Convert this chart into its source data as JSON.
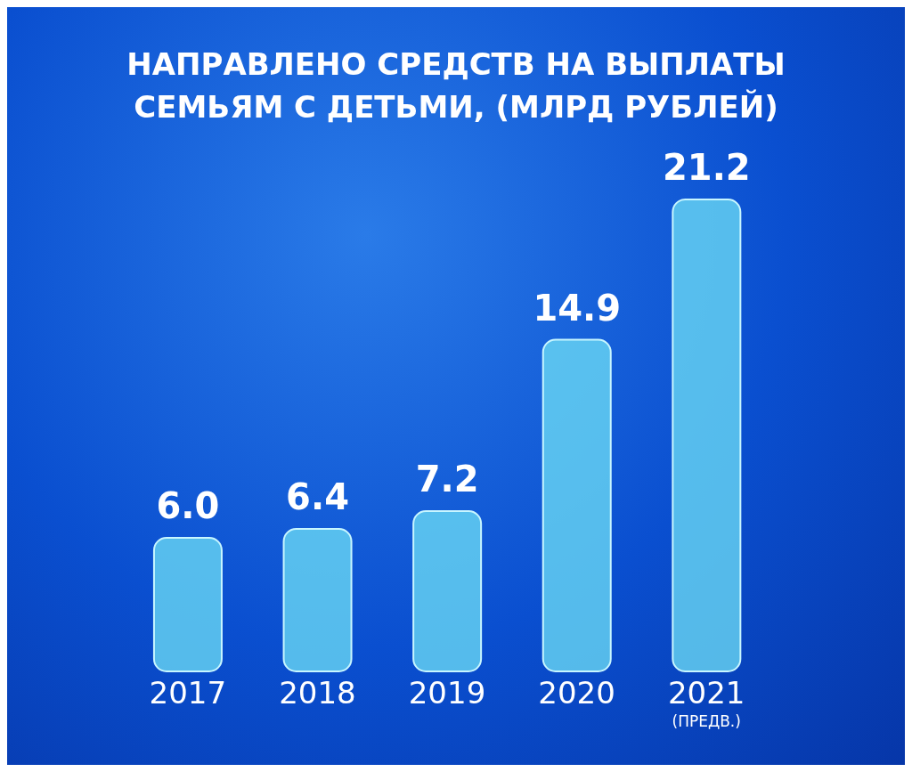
{
  "chart_data": {
    "type": "bar",
    "title": "НАПРАВЛЕНО СРЕДСТВ НА ВЫПЛАТЫ СЕМЬЯМ С ДЕТЬМИ, (МЛРД РУБЛЕЙ)",
    "categories": [
      "2017",
      "2018",
      "2019",
      "2020",
      "2021 (ПРЕДВ.)"
    ],
    "values": [
      6.0,
      6.4,
      7.2,
      14.9,
      21.2
    ],
    "color": "#6fe0f5",
    "value_labels": [
      "6.0",
      "6.4",
      "7.2",
      "14.9",
      "21.2"
    ]
  }
}
